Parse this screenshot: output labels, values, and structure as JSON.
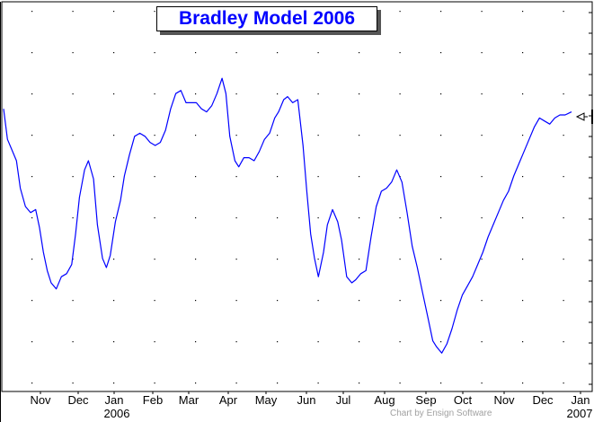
{
  "chart_data": {
    "type": "line",
    "title": "Bradley Model 2006",
    "x_tick_labels": [
      "Nov",
      "Dec",
      "Jan",
      "Feb",
      "Mar",
      "Apr",
      "May",
      "Jun",
      "Jul",
      "Aug",
      "Sep",
      "Oct",
      "Nov",
      "Dec",
      "Jan"
    ],
    "year_labels": [
      "2006",
      "2007"
    ],
    "xlim": [
      "2005-10-15",
      "2006-12-31"
    ],
    "grid": "dotted",
    "line_color": "#0000ff",
    "series": [
      {
        "values": [
          [
            "2005-10-15",
            0.82
          ],
          [
            "2005-10-18",
            0.72
          ],
          [
            "2005-10-21",
            0.69
          ],
          [
            "2005-10-25",
            0.65
          ],
          [
            "2005-10-28",
            0.56
          ],
          [
            "2005-11-01",
            0.5
          ],
          [
            "2005-11-05",
            0.48
          ],
          [
            "2005-11-09",
            0.49
          ],
          [
            "2005-11-12",
            0.43
          ],
          [
            "2005-11-15",
            0.35
          ],
          [
            "2005-11-18",
            0.29
          ],
          [
            "2005-11-21",
            0.25
          ],
          [
            "2005-11-25",
            0.23
          ],
          [
            "2005-11-29",
            0.27
          ],
          [
            "2005-12-03",
            0.28
          ],
          [
            "2005-12-07",
            0.31
          ],
          [
            "2005-12-10",
            0.41
          ],
          [
            "2005-12-13",
            0.53
          ],
          [
            "2005-12-17",
            0.62
          ],
          [
            "2005-12-20",
            0.65
          ],
          [
            "2005-12-24",
            0.59
          ],
          [
            "2005-12-27",
            0.44
          ],
          [
            "2005-12-31",
            0.33
          ],
          [
            "2006-01-03",
            0.3
          ],
          [
            "2006-01-06",
            0.34
          ],
          [
            "2006-01-10",
            0.45
          ],
          [
            "2006-01-14",
            0.52
          ],
          [
            "2006-01-17",
            0.6
          ],
          [
            "2006-01-21",
            0.67
          ],
          [
            "2006-01-25",
            0.73
          ],
          [
            "2006-01-29",
            0.74
          ],
          [
            "2006-02-02",
            0.73
          ],
          [
            "2006-02-06",
            0.71
          ],
          [
            "2006-02-10",
            0.7
          ],
          [
            "2006-02-14",
            0.71
          ],
          [
            "2006-02-18",
            0.75
          ],
          [
            "2006-02-22",
            0.82
          ],
          [
            "2006-02-26",
            0.87
          ],
          [
            "2006-03-02",
            0.88
          ],
          [
            "2006-03-06",
            0.84
          ],
          [
            "2006-03-10",
            0.84
          ],
          [
            "2006-03-14",
            0.84
          ],
          [
            "2006-03-18",
            0.82
          ],
          [
            "2006-03-22",
            0.81
          ],
          [
            "2006-03-26",
            0.83
          ],
          [
            "2006-03-30",
            0.87
          ],
          [
            "2006-04-03",
            0.92
          ],
          [
            "2006-04-06",
            0.87
          ],
          [
            "2006-04-09",
            0.73
          ],
          [
            "2006-04-13",
            0.65
          ],
          [
            "2006-04-16",
            0.63
          ],
          [
            "2006-04-20",
            0.66
          ],
          [
            "2006-04-24",
            0.66
          ],
          [
            "2006-04-28",
            0.65
          ],
          [
            "2006-05-02",
            0.68
          ],
          [
            "2006-05-06",
            0.72
          ],
          [
            "2006-05-10",
            0.74
          ],
          [
            "2006-05-14",
            0.79
          ],
          [
            "2006-05-17",
            0.81
          ],
          [
            "2006-05-21",
            0.85
          ],
          [
            "2006-05-24",
            0.86
          ],
          [
            "2006-05-28",
            0.84
          ],
          [
            "2006-06-01",
            0.85
          ],
          [
            "2006-06-05",
            0.7
          ],
          [
            "2006-06-08",
            0.55
          ],
          [
            "2006-06-11",
            0.41
          ],
          [
            "2006-06-14",
            0.33
          ],
          [
            "2006-06-17",
            0.27
          ],
          [
            "2006-06-21",
            0.35
          ],
          [
            "2006-06-24",
            0.44
          ],
          [
            "2006-06-28",
            0.49
          ],
          [
            "2006-07-02",
            0.45
          ],
          [
            "2006-07-05",
            0.39
          ],
          [
            "2006-07-09",
            0.27
          ],
          [
            "2006-07-13",
            0.25
          ],
          [
            "2006-07-16",
            0.26
          ],
          [
            "2006-07-20",
            0.28
          ],
          [
            "2006-07-24",
            0.29
          ],
          [
            "2006-07-28",
            0.4
          ],
          [
            "2006-08-01",
            0.5
          ],
          [
            "2006-08-05",
            0.55
          ],
          [
            "2006-08-09",
            0.56
          ],
          [
            "2006-08-13",
            0.58
          ],
          [
            "2006-08-17",
            0.62
          ],
          [
            "2006-08-21",
            0.58
          ],
          [
            "2006-08-25",
            0.48
          ],
          [
            "2006-08-29",
            0.37
          ],
          [
            "2006-09-02",
            0.3
          ],
          [
            "2006-09-06",
            0.22
          ],
          [
            "2006-09-10",
            0.14
          ],
          [
            "2006-09-14",
            0.06
          ],
          [
            "2006-09-17",
            0.04
          ],
          [
            "2006-09-21",
            0.02
          ],
          [
            "2006-09-25",
            0.05
          ],
          [
            "2006-09-29",
            0.1
          ],
          [
            "2006-10-03",
            0.16
          ],
          [
            "2006-10-07",
            0.21
          ],
          [
            "2006-10-11",
            0.24
          ],
          [
            "2006-10-15",
            0.27
          ],
          [
            "2006-10-19",
            0.31
          ],
          [
            "2006-10-23",
            0.35
          ],
          [
            "2006-10-27",
            0.4
          ],
          [
            "2006-10-31",
            0.44
          ],
          [
            "2006-11-04",
            0.48
          ],
          [
            "2006-11-08",
            0.52
          ],
          [
            "2006-11-12",
            0.55
          ],
          [
            "2006-11-16",
            0.6
          ],
          [
            "2006-11-20",
            0.64
          ],
          [
            "2006-11-24",
            0.68
          ],
          [
            "2006-11-28",
            0.72
          ],
          [
            "2006-12-02",
            0.76
          ],
          [
            "2006-12-06",
            0.79
          ],
          [
            "2006-12-10",
            0.78
          ],
          [
            "2006-12-14",
            0.77
          ],
          [
            "2006-12-18",
            0.79
          ],
          [
            "2006-12-22",
            0.8
          ],
          [
            "2006-12-26",
            0.8
          ],
          [
            "2006-12-31",
            0.81
          ]
        ]
      }
    ]
  },
  "footer": {
    "credit": "Chart by Ensign Software"
  }
}
